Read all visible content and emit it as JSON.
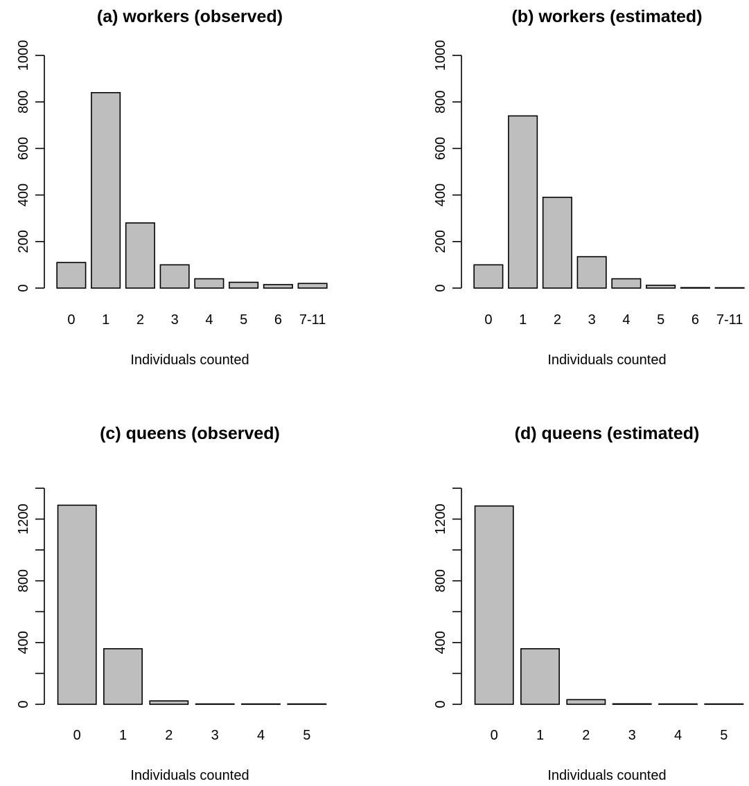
{
  "chart_data": [
    {
      "type": "bar",
      "title": "(a) workers (observed)",
      "xlabel": "Individuals counted",
      "ylabel": "",
      "categories": [
        "0",
        "1",
        "2",
        "3",
        "4",
        "5",
        "6",
        "7-11"
      ],
      "values": [
        110,
        840,
        280,
        100,
        40,
        25,
        15,
        20
      ],
      "ylim": [
        0,
        1000
      ],
      "yticks": [
        0,
        200,
        400,
        600,
        800,
        1000
      ],
      "grid": false,
      "bar_color": "#bebebe"
    },
    {
      "type": "bar",
      "title": "(b) workers (estimated)",
      "xlabel": "Individuals counted",
      "ylabel": "",
      "categories": [
        "0",
        "1",
        "2",
        "3",
        "4",
        "5",
        "6",
        "7-11"
      ],
      "values": [
        100,
        740,
        390,
        135,
        40,
        12,
        2,
        1
      ],
      "ylim": [
        0,
        1000
      ],
      "yticks": [
        0,
        200,
        400,
        600,
        800,
        1000
      ],
      "grid": false,
      "bar_color": "#bebebe"
    },
    {
      "type": "bar",
      "title": "(c) queens (observed)",
      "xlabel": "Individuals counted",
      "ylabel": "",
      "categories": [
        "0",
        "1",
        "2",
        "3",
        "4",
        "5"
      ],
      "values": [
        1290,
        360,
        22,
        2,
        1,
        1
      ],
      "ylim": [
        0,
        1400
      ],
      "yticks": [
        0,
        200,
        400,
        600,
        800,
        1000,
        1200,
        1400
      ],
      "ytick_labels_shown": [
        0,
        400,
        800,
        1200
      ],
      "grid": false,
      "bar_color": "#bebebe"
    },
    {
      "type": "bar",
      "title": "(d) queens (estimated)",
      "xlabel": "Individuals counted",
      "ylabel": "",
      "categories": [
        "0",
        "1",
        "2",
        "3",
        "4",
        "5"
      ],
      "values": [
        1285,
        360,
        30,
        3,
        1,
        1
      ],
      "ylim": [
        0,
        1400
      ],
      "yticks": [
        0,
        200,
        400,
        600,
        800,
        1000,
        1200,
        1400
      ],
      "ytick_labels_shown": [
        0,
        400,
        800,
        1200
      ],
      "grid": false,
      "bar_color": "#bebebe"
    }
  ]
}
